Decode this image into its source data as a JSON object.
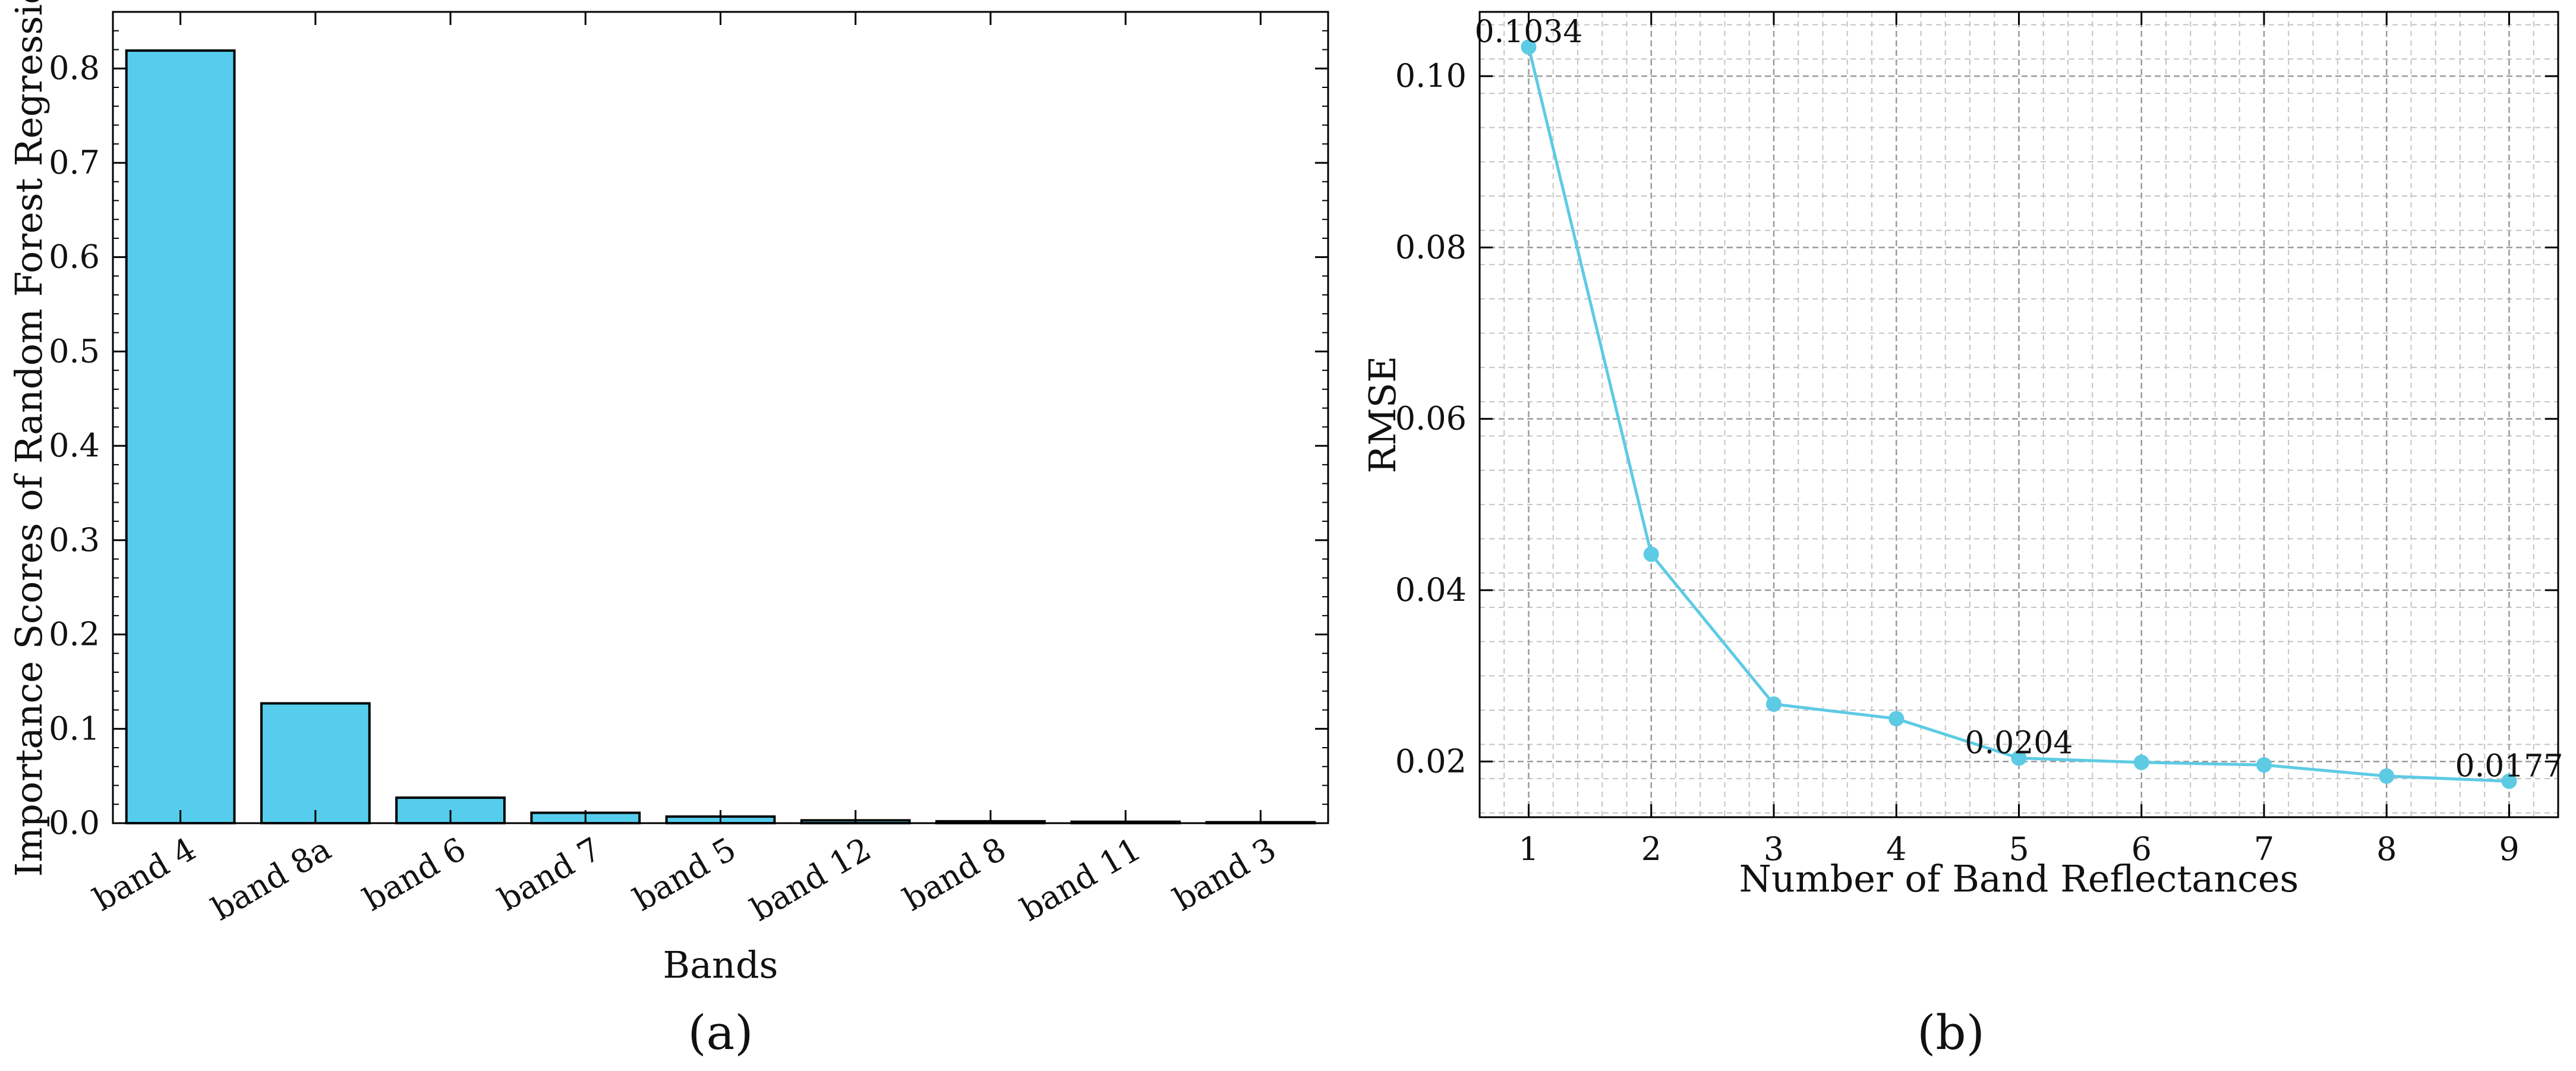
{
  "chart_data": [
    {
      "type": "bar",
      "categories": [
        "band 4",
        "band 8a",
        "band 6",
        "band 7",
        "band 5",
        "band 12",
        "band 8",
        "band 11",
        "band 3"
      ],
      "values": [
        0.819,
        0.127,
        0.027,
        0.011,
        0.007,
        0.003,
        0.002,
        0.0015,
        0.001
      ],
      "xlabel": "Bands",
      "ylabel": "Importance Scores of Random Forest Regression",
      "ylim": [
        0,
        0.86
      ],
      "yticks": [
        "0.0",
        "0.1",
        "0.2",
        "0.3",
        "0.4",
        "0.5",
        "0.6",
        "0.7",
        "0.8"
      ],
      "grid": false,
      "bar_color": "#56cdec",
      "edge_color": "#000000",
      "panel_label": "(a)"
    },
    {
      "type": "line",
      "x": [
        1,
        2,
        3,
        4,
        5,
        6,
        7,
        8,
        9
      ],
      "values": [
        0.1034,
        0.0442,
        0.0267,
        0.025,
        0.0204,
        0.0199,
        0.0196,
        0.0183,
        0.0177
      ],
      "xlabel": "Number of Band Reflectances",
      "ylabel": "RMSE",
      "xlim": [
        0.6,
        9.4
      ],
      "ylim": [
        0.0135,
        0.1075
      ],
      "xticks": [
        "1",
        "2",
        "3",
        "4",
        "5",
        "6",
        "7",
        "8",
        "9"
      ],
      "yticks": [
        "0.02",
        "0.04",
        "0.06",
        "0.08",
        "0.10"
      ],
      "grid": true,
      "line_color": "#5dcbe4",
      "annotations": [
        {
          "x": 1,
          "text": "0.1034"
        },
        {
          "x": 5,
          "text": "0.0204"
        },
        {
          "x": 9,
          "text": "0.0177"
        }
      ],
      "panel_label": "(b)"
    }
  ]
}
